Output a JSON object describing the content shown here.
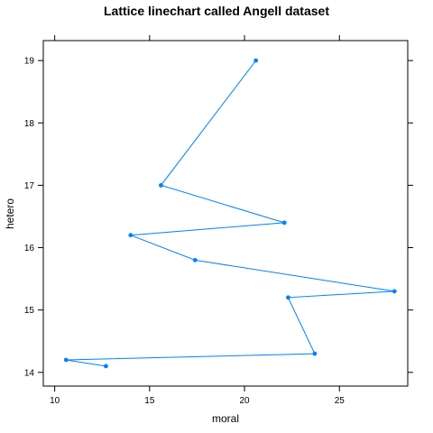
{
  "chart_data": {
    "type": "line",
    "title": "Lattice linechart called Angell dataset",
    "xlabel": "moral",
    "ylabel": "hetero",
    "xlim": [
      9.4,
      28.6
    ],
    "ylim": [
      13.78,
      19.32
    ],
    "x_ticks": [
      10,
      15,
      20,
      25
    ],
    "y_ticks": [
      14,
      15,
      16,
      17,
      18,
      19
    ],
    "grid": false,
    "legend": "none",
    "color": "#0080ff",
    "series": [
      {
        "points": [
          {
            "x": 20.6,
            "y": 19.0
          },
          {
            "x": 15.6,
            "y": 17.0
          },
          {
            "x": 22.1,
            "y": 16.4
          },
          {
            "x": 14.0,
            "y": 16.2
          },
          {
            "x": 17.4,
            "y": 15.8
          },
          {
            "x": 27.9,
            "y": 15.3
          },
          {
            "x": 22.3,
            "y": 15.2
          },
          {
            "x": 23.7,
            "y": 14.3
          },
          {
            "x": 10.6,
            "y": 14.2
          },
          {
            "x": 12.7,
            "y": 14.1
          }
        ]
      }
    ]
  }
}
